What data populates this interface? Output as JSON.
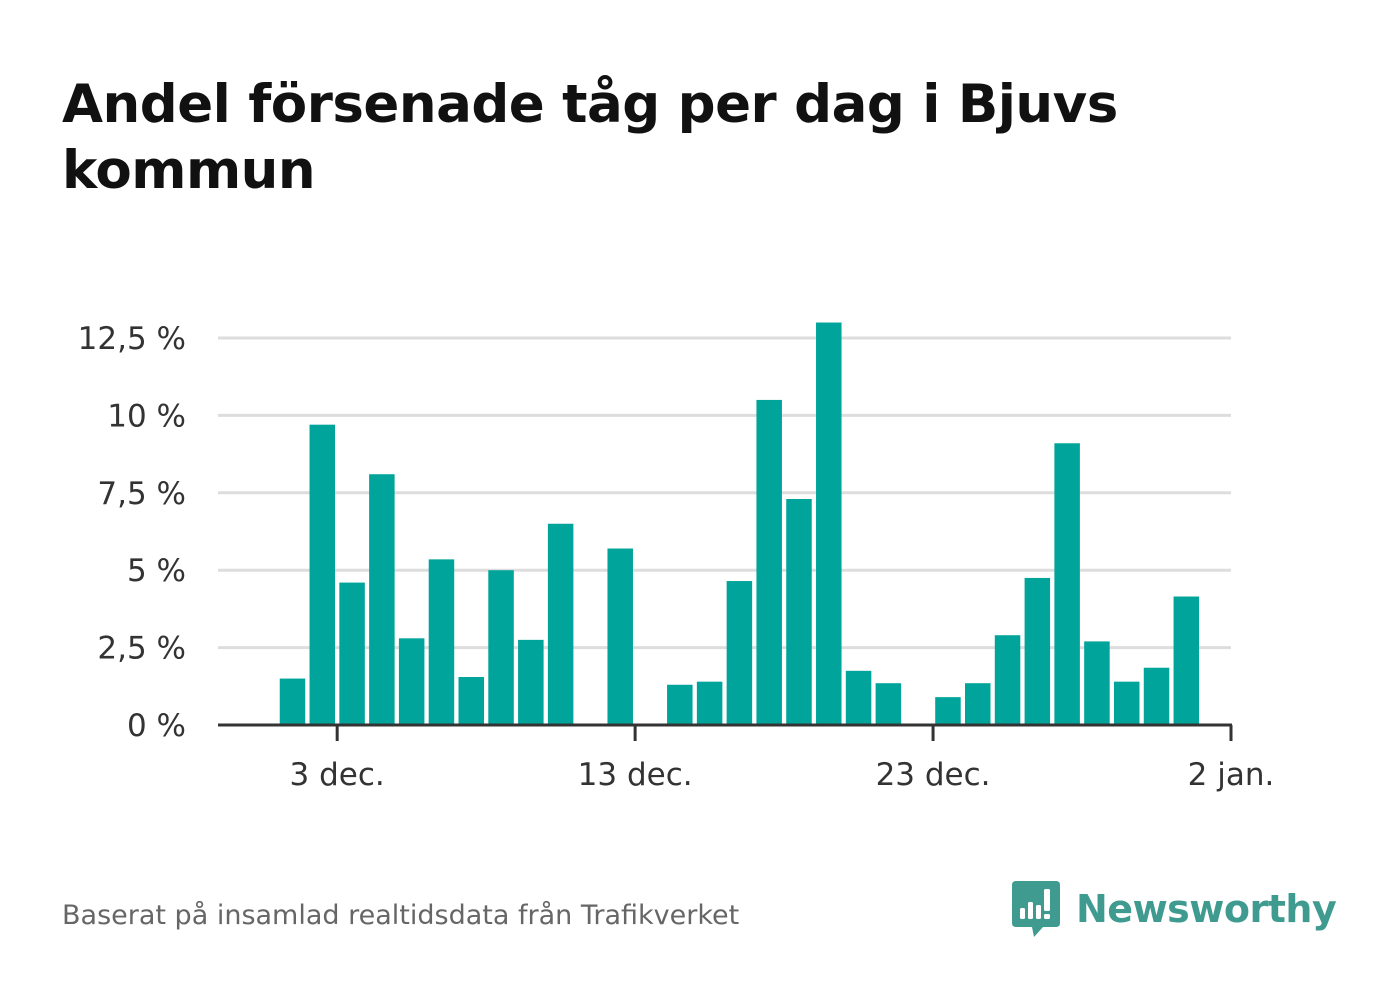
{
  "title": "Andel försenade tåg per dag i Bjuvs kommun",
  "source": "Baserat på insamlad realtidsdata från Trafikverket",
  "logo": {
    "text": "Newsworthy",
    "icon": "bar-chart-speech-bubble-icon",
    "color": "#3f9a90"
  },
  "colors": {
    "bar": "#00a49a",
    "grid": "#dddddd",
    "axis": "#333333"
  },
  "chart_data": {
    "type": "bar",
    "title": "Andel försenade tåg per dag i Bjuvs kommun",
    "xlabel": "",
    "ylabel": "",
    "ylim": [
      0,
      12.5
    ],
    "yticks": [
      0,
      2.5,
      5,
      7.5,
      10,
      12.5
    ],
    "ytick_labels": [
      "0 %",
      "2,5 %",
      "5 %",
      "7,5 %",
      "10 %",
      "12,5 %"
    ],
    "x_start": "2022-11-29",
    "x_end": "2023-01-02",
    "xticks": [
      "2022-12-03",
      "2022-12-13",
      "2022-12-23",
      "2023-01-02"
    ],
    "xtick_labels": [
      "3 dec.",
      "13 dec.",
      "23 dec.",
      "2 jan."
    ],
    "grid": true,
    "legend": "none",
    "series": [
      {
        "values": [
          {
            "date": "2022-12-01",
            "value": 1.5
          },
          {
            "date": "2022-12-02",
            "value": 9.7
          },
          {
            "date": "2022-12-03",
            "value": 4.6
          },
          {
            "date": "2022-12-04",
            "value": 8.1
          },
          {
            "date": "2022-12-05",
            "value": 2.8
          },
          {
            "date": "2022-12-06",
            "value": 5.35
          },
          {
            "date": "2022-12-07",
            "value": 1.55
          },
          {
            "date": "2022-12-08",
            "value": 5.0
          },
          {
            "date": "2022-12-09",
            "value": 2.75
          },
          {
            "date": "2022-12-10",
            "value": 6.5
          },
          {
            "date": "2022-12-12",
            "value": 5.7
          },
          {
            "date": "2022-12-14",
            "value": 1.3
          },
          {
            "date": "2022-12-15",
            "value": 1.4
          },
          {
            "date": "2022-12-16",
            "value": 4.65
          },
          {
            "date": "2022-12-17",
            "value": 10.5
          },
          {
            "date": "2022-12-18",
            "value": 7.3
          },
          {
            "date": "2022-12-19",
            "value": 13.0
          },
          {
            "date": "2022-12-20",
            "value": 1.75
          },
          {
            "date": "2022-12-21",
            "value": 1.35
          },
          {
            "date": "2022-12-23",
            "value": 0.9
          },
          {
            "date": "2022-12-24",
            "value": 1.35
          },
          {
            "date": "2022-12-25",
            "value": 2.9
          },
          {
            "date": "2022-12-26",
            "value": 4.75
          },
          {
            "date": "2022-12-27",
            "value": 9.1
          },
          {
            "date": "2022-12-28",
            "value": 2.7
          },
          {
            "date": "2022-12-29",
            "value": 1.4
          },
          {
            "date": "2022-12-30",
            "value": 1.85
          },
          {
            "date": "2022-12-31",
            "value": 4.15
          }
        ]
      }
    ]
  }
}
